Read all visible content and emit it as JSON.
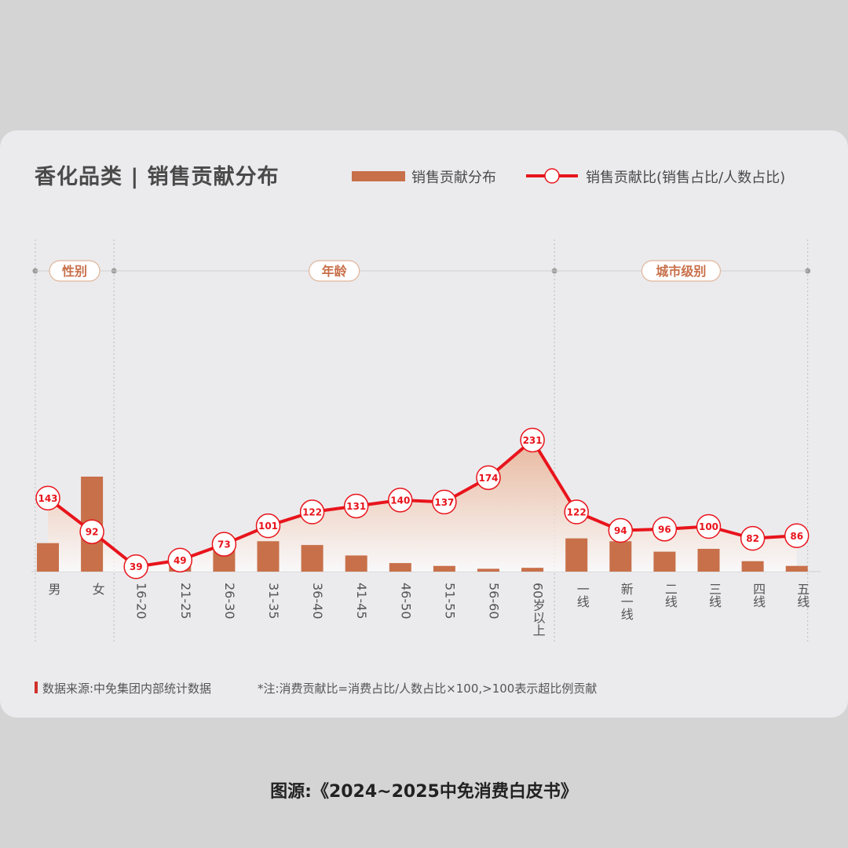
{
  "title": "香化品类 | 销售贡献分布",
  "legend": {
    "bar_label": "销售贡献分布",
    "line_label": "销售贡献比(销售占比/人数占比)"
  },
  "groups": [
    {
      "label": "性别",
      "start": 0,
      "end": 1
    },
    {
      "label": "年龄",
      "start": 2,
      "end": 11
    },
    {
      "label": "城市级别",
      "start": 12,
      "end": 17
    }
  ],
  "colors": {
    "bar": "#c8704a",
    "line": "#e8141c",
    "area_top": "#e7a37e",
    "group_label_border": "#e0b59a",
    "group_label_text": "#c8704a"
  },
  "chart_data": {
    "type": "bar",
    "categories": [
      "男",
      "女",
      "16-20",
      "21-25",
      "26-30",
      "31-35",
      "36-40",
      "41-45",
      "46-50",
      "51-55",
      "56-60",
      "60岁以上",
      "一线",
      "新一线",
      "二线",
      "三线",
      "四线",
      "五线"
    ],
    "series": [
      {
        "name": "销售贡献分布",
        "type": "bar",
        "values": [
          30,
          100,
          4,
          6,
          24,
          32,
          28,
          17,
          9,
          6,
          3,
          4,
          35,
          32,
          21,
          24,
          11,
          6
        ]
      },
      {
        "name": "销售贡献比(销售占比/人数占比)",
        "type": "line",
        "values": [
          143,
          92,
          39,
          49,
          73,
          101,
          122,
          131,
          140,
          137,
          174,
          231,
          122,
          94,
          96,
          100,
          82,
          86
        ]
      }
    ],
    "xlabel": "",
    "ylabel": "",
    "grid": false,
    "legend_position": "top-right"
  },
  "footer": {
    "source": "数据来源:中免集团内部统计数据",
    "note": "*注:消费贡献比=消费占比/人数占比×100,>100表示超比例贡献"
  },
  "credit": "图源:《2024~2025中免消费白皮书》"
}
